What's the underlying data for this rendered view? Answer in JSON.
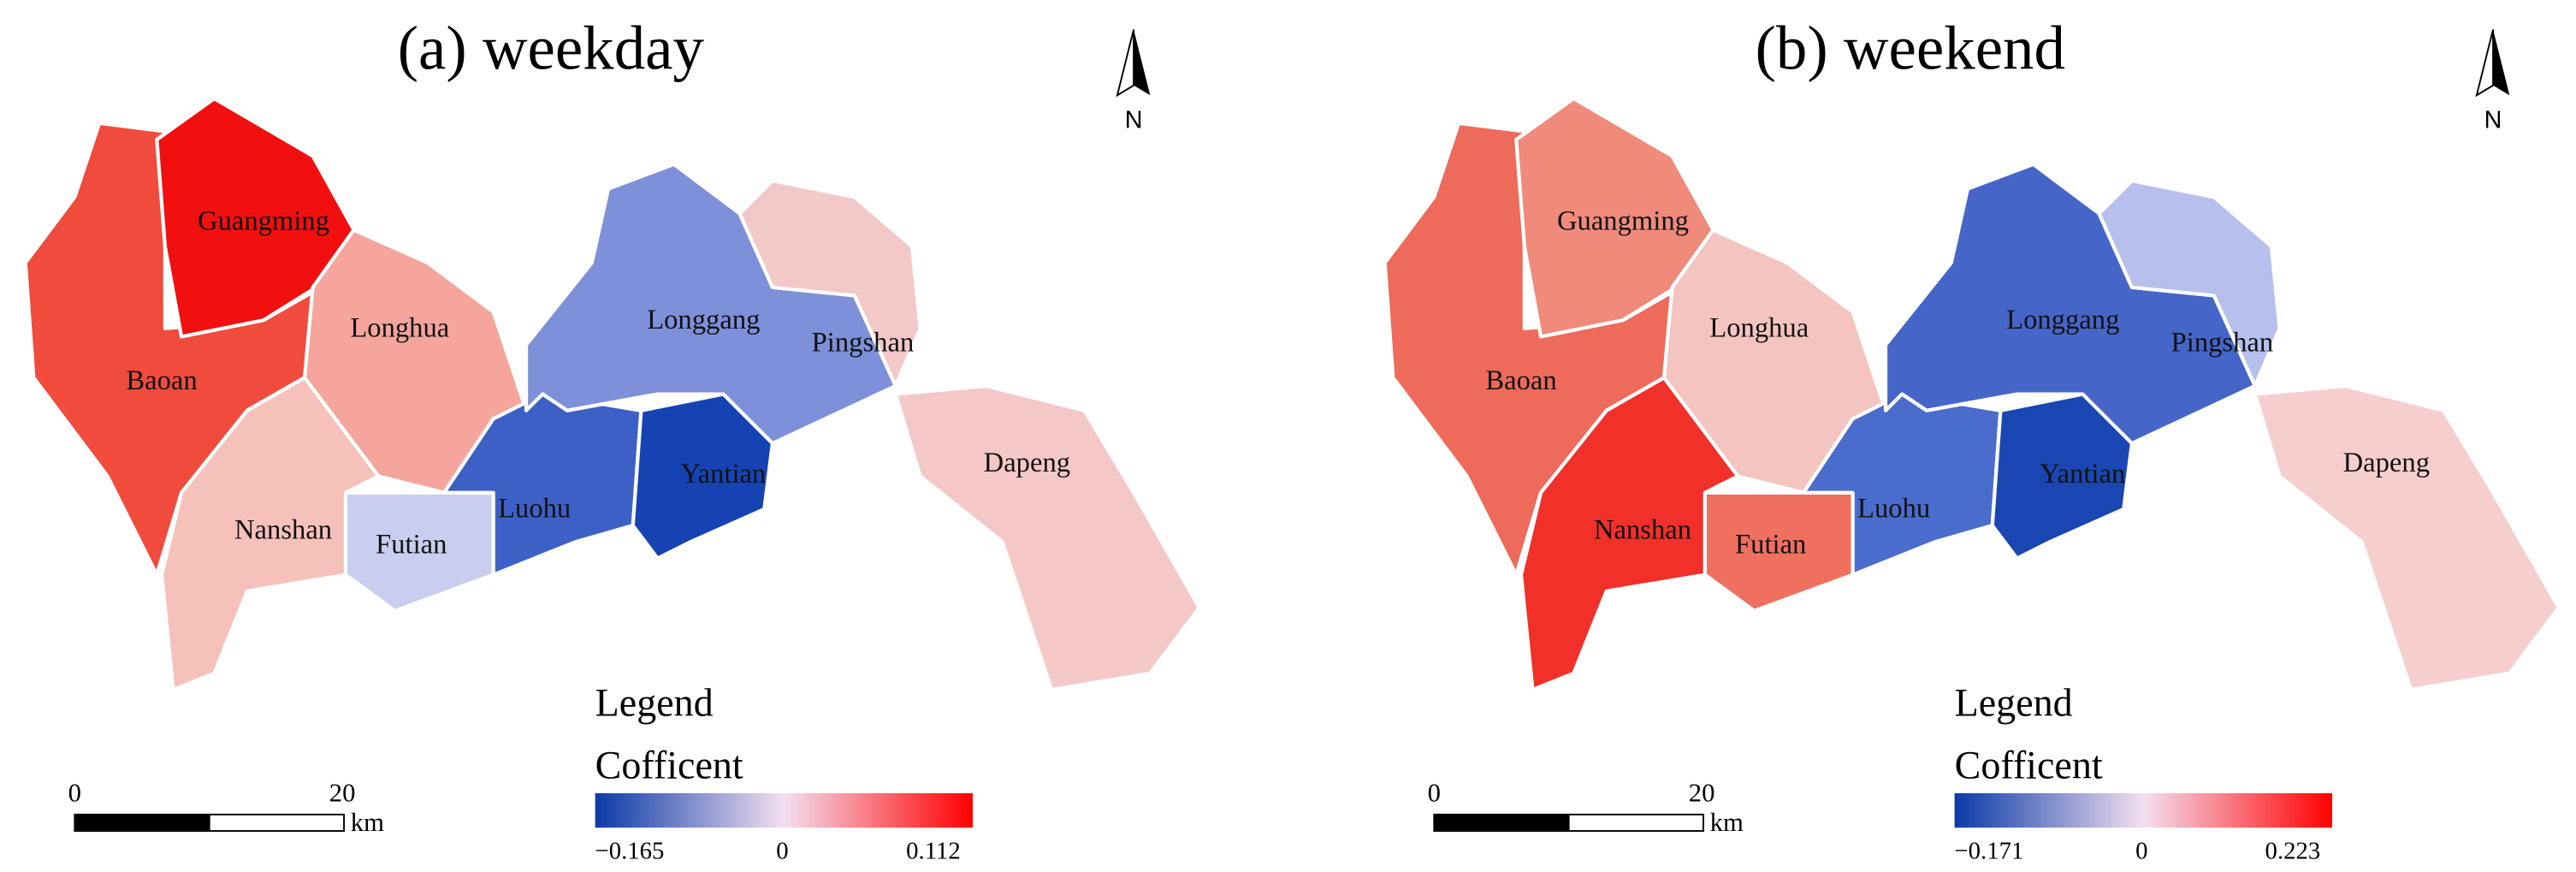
{
  "panels": [
    {
      "title": "(a) weekday",
      "north": "N",
      "districts": [
        "Baoan",
        "Guangming",
        "Longhua",
        "Nanshan",
        "Futian",
        "Luohu",
        "Longgang",
        "Yantian",
        "Pingshan",
        "Dapeng"
      ],
      "legend": {
        "title": "Legend",
        "subtitle": "Cofficent",
        "min": "−0.165",
        "mid": "0",
        "max": "0.112"
      },
      "scale": {
        "start": "0",
        "end": "20",
        "unit": "km"
      }
    },
    {
      "title": "(b) weekend",
      "north": "N",
      "districts": [
        "Baoan",
        "Guangming",
        "Longhua",
        "Nanshan",
        "Futian",
        "Luohu",
        "Longgang",
        "Yantian",
        "Pingshan",
        "Dapeng"
      ],
      "legend": {
        "title": "Legend",
        "subtitle": "Cofficent",
        "min": "−0.171",
        "mid": "0",
        "max": "0.223"
      },
      "scale": {
        "start": "0",
        "end": "20",
        "unit": "km"
      }
    }
  ]
}
